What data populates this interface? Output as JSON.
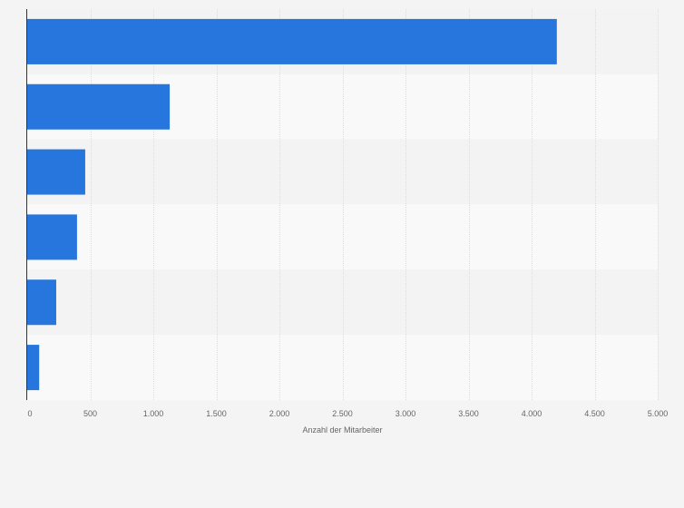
{
  "chart_data": {
    "type": "bar",
    "orientation": "horizontal",
    "categories": [
      "",
      "",
      "",
      "",
      "",
      ""
    ],
    "values": [
      4200,
      1130,
      460,
      395,
      230,
      95
    ],
    "xlabel": "Anzahl der Mitarbeiter",
    "xlim": [
      0,
      5000
    ],
    "xticks": [
      0,
      500,
      1000,
      1500,
      2000,
      2500,
      3000,
      3500,
      4000,
      4500,
      5000
    ],
    "xtick_labels": [
      "0",
      "500",
      "1.000",
      "1.500",
      "2.000",
      "2.500",
      "3.000",
      "3.500",
      "4.000",
      "4.500",
      "5.000"
    ],
    "grid": "vertical",
    "colors": {
      "bar": "#2776de",
      "band_dark": "#f3f3f3",
      "band_light": "#f9f9f9",
      "grid": "#dddddd",
      "axis": "#333333",
      "page_bg": "#f4f4f4"
    }
  }
}
